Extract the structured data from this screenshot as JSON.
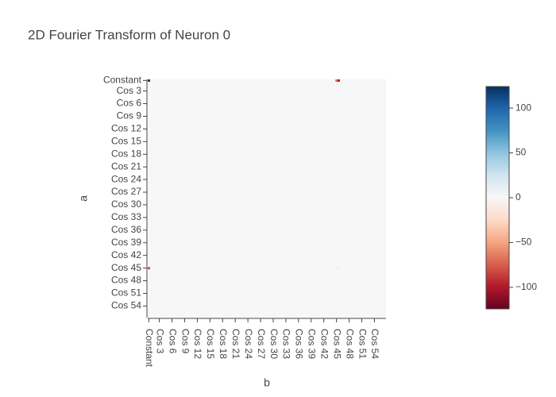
{
  "chart_data": {
    "type": "heatmap",
    "title": "2D Fourier Transform of Neuron 0",
    "x_label": "b",
    "y_label": "a",
    "categories": [
      "Constant",
      null,
      null,
      null,
      null,
      "Cos 3",
      null,
      null,
      null,
      null,
      null,
      "Cos 6",
      null,
      null,
      null,
      null,
      null,
      "Cos 9",
      null,
      null,
      null,
      null,
      null,
      "Cos 12",
      null,
      null,
      null,
      null,
      null,
      "Cos 15",
      null,
      null,
      null,
      null,
      null,
      "Cos 18",
      null,
      null,
      null,
      null,
      null,
      "Cos 21",
      null,
      null,
      null,
      null,
      null,
      "Cos 24",
      null,
      null,
      null,
      null,
      null,
      "Cos 27",
      null,
      null,
      null,
      null,
      null,
      "Cos 30",
      null,
      null,
      null,
      null,
      null,
      "Cos 33",
      null,
      null,
      null,
      null,
      null,
      "Cos 36",
      null,
      null,
      null,
      null,
      null,
      "Cos 39",
      null,
      null,
      null,
      null,
      null,
      "Cos 42",
      null,
      null,
      null,
      null,
      null,
      "Cos 45",
      null,
      null,
      null,
      null,
      null,
      "Cos 48",
      null,
      null,
      null,
      null,
      null,
      "Cos 51",
      null,
      null,
      null,
      null,
      null,
      "Cos 54",
      null,
      null,
      null,
      null,
      null
    ],
    "cells": [
      {
        "x": 0,
        "y": 0,
        "value": 120
      },
      {
        "x": 89,
        "y": 0,
        "value": -70
      },
      {
        "x": 90,
        "y": 0,
        "value": -100
      },
      {
        "x": 0,
        "y": 89,
        "value": -80
      },
      {
        "x": 89,
        "y": 89,
        "value": -6
      },
      {
        "x": 90,
        "y": 89,
        "value": -8
      },
      {
        "x": 44,
        "y": 44,
        "value": -3
      },
      {
        "x": 89,
        "y": 44,
        "value": -3
      },
      {
        "x": 45,
        "y": 89,
        "value": -3
      }
    ],
    "zlim": [
      -124,
      124
    ],
    "colorscale": [
      "#67001f",
      "#b2182b",
      "#d6604d",
      "#f4a582",
      "#fddbc7",
      "#f7f7f7",
      "#d1e5f0",
      "#92c5de",
      "#4393c3",
      "#2166ac",
      "#053061"
    ],
    "colorbar_ticks": [
      {
        "value": -100,
        "label": "−100"
      },
      {
        "value": -50,
        "label": "−50"
      },
      0,
      50,
      100
    ]
  }
}
